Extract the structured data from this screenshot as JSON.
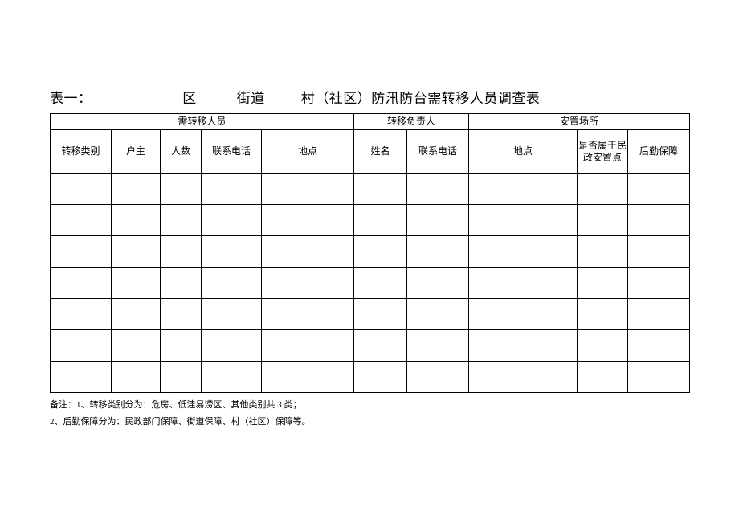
{
  "title": {
    "prefix": "表一：",
    "seg_district": "区",
    "seg_street": "街道",
    "seg_village": "村（社区）防汛防台需转移人员调查表"
  },
  "group_headers": {
    "transfer": "需转移人员",
    "responsible": "转移负责人",
    "placement": "安置场所"
  },
  "columns": {
    "category": "转移类别",
    "householder": "户主",
    "count": "人数",
    "phone1": "联系电话",
    "location1": "地点",
    "name": "姓名",
    "phone2": "联系电话",
    "location2": "地点",
    "civil_point": "是否属于民政安置点",
    "logistics": "后勤保障"
  },
  "col_widths": {
    "category": 76,
    "householder": 61,
    "count": 51,
    "phone1": 75,
    "location1": 115,
    "name": 66,
    "phone2": 77,
    "location2": 135,
    "civil_point": 63,
    "logistics": 77
  },
  "data_row_count": 7,
  "notes": {
    "line1": "备注：1、转移类别分为：危房、低洼易涝区、其他类别共 3 类；",
    "line2": "2、后勤保障分为：民政部门保障、街道保障、村（社区）保障等。"
  },
  "colors": {
    "text": "#000000",
    "border": "#000000",
    "background": "#ffffff"
  }
}
